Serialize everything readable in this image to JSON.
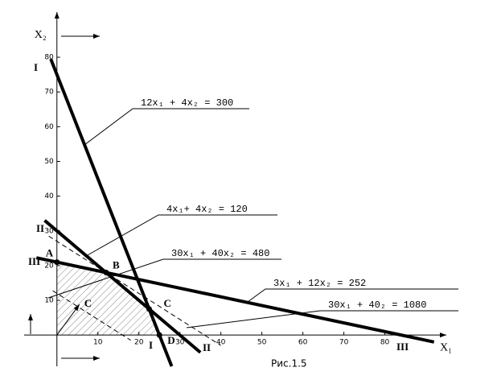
{
  "chart_data": {
    "type": "line",
    "caption": "Рис.1.5",
    "x_label": "X₁",
    "y_label": "X₂",
    "xlim": [
      -8,
      95
    ],
    "ylim": [
      -9,
      93
    ],
    "xticks": [
      10,
      20,
      30,
      40,
      50,
      60,
      70,
      80
    ],
    "yticks": [
      10,
      20,
      30,
      40,
      50,
      60,
      70,
      80
    ],
    "series": [
      {
        "name": "12x₁ + 4x₂ = 300",
        "numeral": "I",
        "style": "solid",
        "color": "#000000",
        "x": [
          -1.5,
          28
        ],
        "values": [
          79.5,
          -9
        ]
      },
      {
        "name": "4x₁+ 4x₂ = 120",
        "numeral": "II",
        "style": "solid",
        "color": "#000000",
        "x": [
          -3,
          35
        ],
        "values": [
          33,
          -5
        ]
      },
      {
        "name": "30x₁ + 40x₂ = 480",
        "style": "dashed",
        "color": "#000000",
        "x": [
          -1,
          18
        ],
        "values": [
          12.75,
          -1.5
        ]
      },
      {
        "name": "3x₁ + 12x₂ = 252",
        "numeral": "III",
        "style": "solid",
        "color": "#000000",
        "x": [
          -5,
          92
        ],
        "values": [
          22.25,
          -2
        ]
      },
      {
        "name": "30x₁ + 40₂ = 1080",
        "style": "dashed",
        "color": "#000000",
        "x": [
          -2,
          40
        ],
        "values": [
          28.5,
          -3
        ]
      }
    ],
    "points": [
      {
        "label": "A",
        "x": 0,
        "y": 21
      },
      {
        "label": "B",
        "x": 12,
        "y": 18
      },
      {
        "label": "C",
        "x": 22.5,
        "y": 7.5
      },
      {
        "label": "D",
        "x": 25,
        "y": 0
      }
    ],
    "vector_label": "C⃗"
  }
}
